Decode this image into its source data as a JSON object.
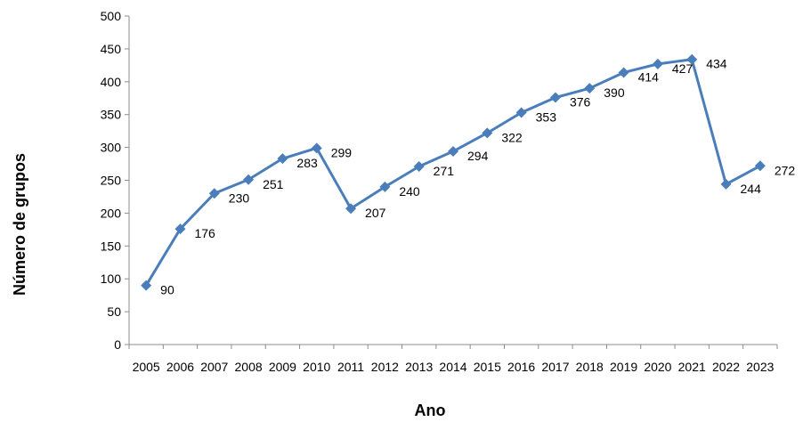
{
  "chart_data": {
    "type": "line",
    "title": "",
    "xlabel": "Ano",
    "ylabel": "Número de grupos",
    "categories": [
      "2005",
      "2006",
      "2007",
      "2008",
      "2009",
      "2010",
      "2011",
      "2012",
      "2013",
      "2014",
      "2015",
      "2016",
      "2017",
      "2018",
      "2019",
      "2020",
      "2021",
      "2022",
      "2023"
    ],
    "series": [
      {
        "values": [
          90,
          176,
          230,
          251,
          283,
          299,
          207,
          240,
          271,
          294,
          322,
          353,
          376,
          390,
          414,
          427,
          434,
          244,
          272
        ],
        "color": "#4a7ebb",
        "marker": "diamond",
        "data_labels": true
      }
    ],
    "ylim": [
      0,
      500
    ],
    "yticks": [
      0,
      50,
      100,
      150,
      200,
      250,
      300,
      350,
      400,
      450,
      500
    ],
    "grid": false,
    "legend": "none"
  }
}
